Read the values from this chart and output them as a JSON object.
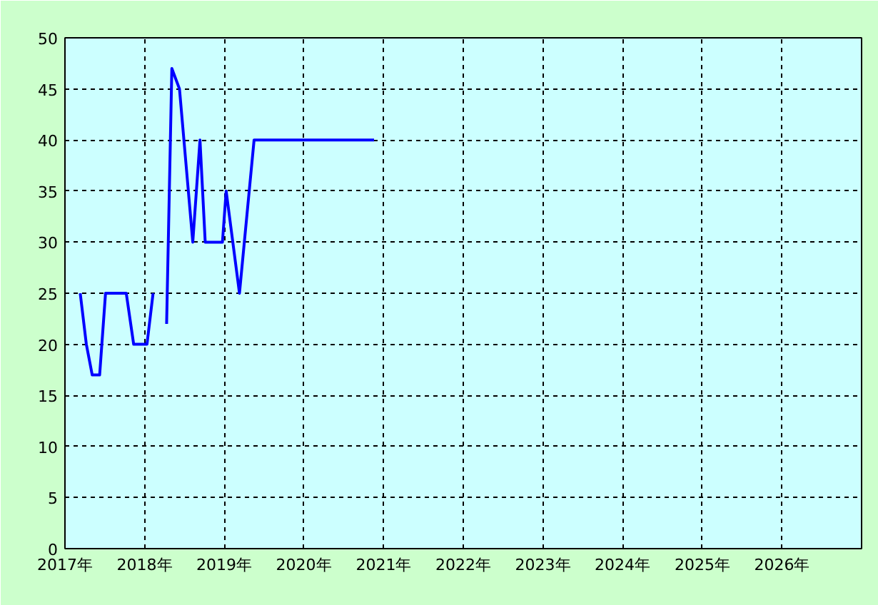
{
  "chart_data": {
    "type": "line",
    "x": [
      "2017-03-12",
      "2017-04-09",
      "2017-05-06",
      "2017-06-09",
      "2017-07-06",
      "2017-10-09",
      "2017-11-12",
      "2018-01-12",
      "2018-02-09",
      "2018-03-10",
      "2018-04-12",
      "2018-05-06",
      "2018-06-10",
      "2018-08-10",
      "2018-09-12",
      "2018-10-06",
      "2018-12-24",
      "2019-01-10",
      "2019-03-12",
      "2019-05-18",
      "2020-11-18"
    ],
    "series": [
      {
        "color": "#0000ff",
        "values": [
          25,
          20,
          17,
          17,
          25,
          25,
          20,
          20,
          25,
          null,
          22,
          47,
          45,
          30,
          40,
          30,
          30,
          35,
          25,
          40,
          40
        ]
      }
    ],
    "xlim": [
      "2017-01-01",
      "2027-01-01"
    ],
    "xticks": [
      {
        "value": "2017-01-01",
        "label": "2017年"
      },
      {
        "value": "2018-01-01",
        "label": "2018年"
      },
      {
        "value": "2019-01-01",
        "label": "2019年"
      },
      {
        "value": "2020-01-01",
        "label": "2020年"
      },
      {
        "value": "2021-01-01",
        "label": "2021年"
      },
      {
        "value": "2022-01-01",
        "label": "2022年"
      },
      {
        "value": "2023-01-01",
        "label": "2023年"
      },
      {
        "value": "2024-01-01",
        "label": "2024年"
      },
      {
        "value": "2025-01-01",
        "label": "2025年"
      },
      {
        "value": "2026-01-01",
        "label": "2026年"
      },
      {
        "value": "2027-01-01",
        "label": null
      }
    ],
    "ylim": [
      0,
      50
    ],
    "yticks": [
      0,
      5,
      10,
      15,
      20,
      25,
      30,
      35,
      40,
      45,
      50
    ],
    "grid": true,
    "marker": "none",
    "line_style": "solid"
  }
}
